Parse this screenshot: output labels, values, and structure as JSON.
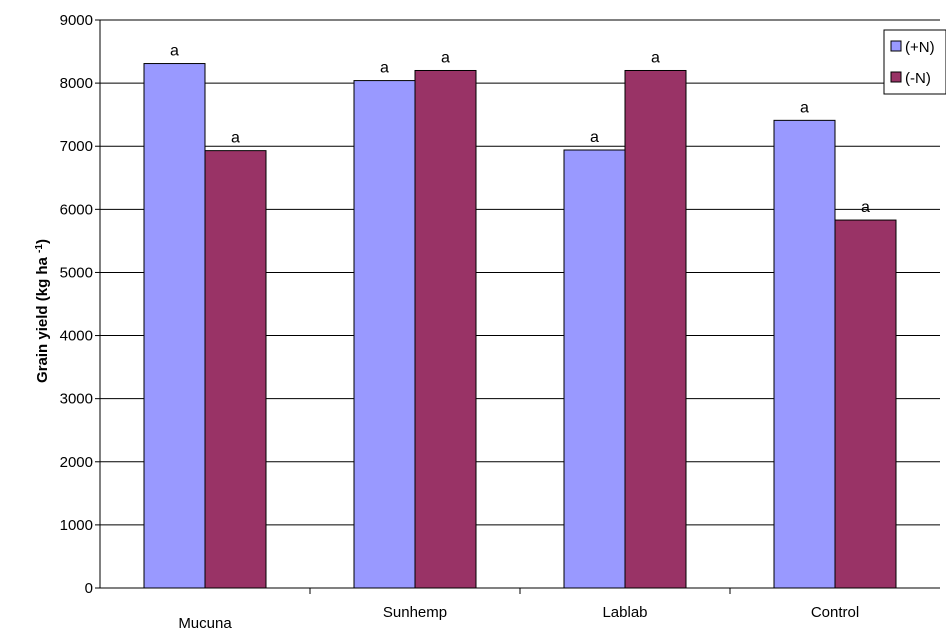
{
  "chart_data": {
    "type": "bar",
    "categories": [
      "Mucuna",
      "Sunhemp",
      "Lablab",
      "Control"
    ],
    "series": [
      {
        "name": "(+N)",
        "color": "#9999ff",
        "values": [
          8310,
          8040,
          6940,
          7410
        ],
        "labels": [
          "a",
          "a",
          "a",
          "a"
        ]
      },
      {
        "name": "(-N)",
        "color": "#993366",
        "values": [
          6930,
          8200,
          8200,
          5830
        ],
        "labels": [
          "a",
          "a",
          "a",
          "a"
        ]
      }
    ],
    "ylabel": "Grain yield (kg ha -1)",
    "ylabel_main": "Grain yield (kg ha ",
    "ylabel_sup": "-1",
    "ylabel_end": ")",
    "ylim": [
      0,
      9000
    ],
    "yticks": [
      0,
      1000,
      2000,
      3000,
      4000,
      5000,
      6000,
      7000,
      8000,
      9000
    ],
    "grid": true,
    "legend_position": "top-right"
  }
}
